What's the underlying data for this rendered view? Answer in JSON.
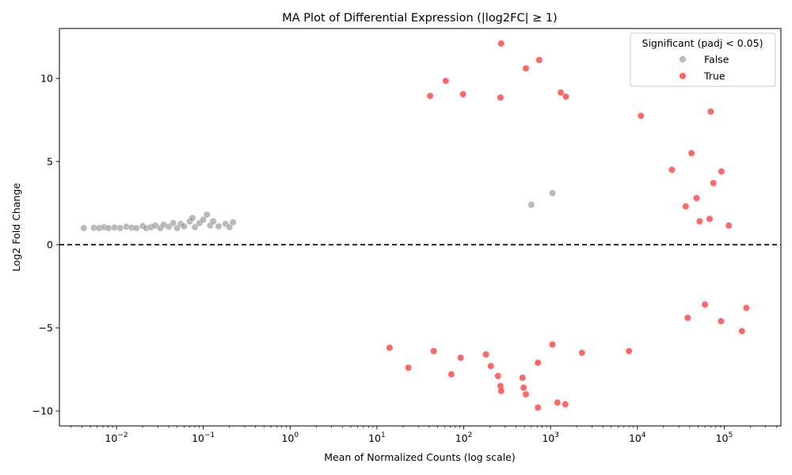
{
  "chart_data": {
    "type": "scatter",
    "title": "MA Plot of Differential Expression (|log2FC| ≥ 1)",
    "xlabel": "Mean of Normalized Counts (log scale)",
    "ylabel": "Log2 Fold Change",
    "x_scale": "log",
    "xlim": [
      0.0022,
      450000
    ],
    "ylim": [
      -10.9,
      13.0
    ],
    "x_ticks": [
      {
        "value": 0.01,
        "label": "10",
        "exp": "−2"
      },
      {
        "value": 0.1,
        "label": "10",
        "exp": "−1"
      },
      {
        "value": 1,
        "label": "10",
        "exp": "0"
      },
      {
        "value": 10,
        "label": "10",
        "exp": "1"
      },
      {
        "value": 100,
        "label": "10",
        "exp": "2"
      },
      {
        "value": 1000,
        "label": "10",
        "exp": "3"
      },
      {
        "value": 10000,
        "label": "10",
        "exp": "4"
      },
      {
        "value": 100000,
        "label": "10",
        "exp": "5"
      }
    ],
    "y_ticks": [
      {
        "value": -10,
        "label": "−10"
      },
      {
        "value": -5,
        "label": "−5"
      },
      {
        "value": 0,
        "label": "0"
      },
      {
        "value": 5,
        "label": "5"
      },
      {
        "value": 10,
        "label": "10"
      }
    ],
    "reference_line": {
      "y": 0,
      "style": "dashed",
      "color": "#000000"
    },
    "legend": {
      "title": "Significant (padj < 0.05)",
      "placement": "top-right",
      "entries": [
        {
          "label": "False",
          "color": "#8c8c8c"
        },
        {
          "label": "True",
          "color": "#ff0000"
        }
      ]
    },
    "series": [
      {
        "name": "False",
        "color": "#8c8c8c",
        "points": [
          [
            0.0042,
            1.0
          ],
          [
            0.0055,
            1.02
          ],
          [
            0.0063,
            1.0
          ],
          [
            0.0072,
            1.05
          ],
          [
            0.0081,
            1.0
          ],
          [
            0.0095,
            1.03
          ],
          [
            0.011,
            1.0
          ],
          [
            0.013,
            1.08
          ],
          [
            0.015,
            1.02
          ],
          [
            0.017,
            1.0
          ],
          [
            0.02,
            1.12
          ],
          [
            0.022,
            1.0
          ],
          [
            0.025,
            1.05
          ],
          [
            0.028,
            1.15
          ],
          [
            0.032,
            1.0
          ],
          [
            0.035,
            1.2
          ],
          [
            0.04,
            1.08
          ],
          [
            0.045,
            1.3
          ],
          [
            0.05,
            1.0
          ],
          [
            0.055,
            1.25
          ],
          [
            0.06,
            1.1
          ],
          [
            0.07,
            1.4
          ],
          [
            0.075,
            1.6
          ],
          [
            0.08,
            1.05
          ],
          [
            0.09,
            1.3
          ],
          [
            0.1,
            1.5
          ],
          [
            0.11,
            1.8
          ],
          [
            0.12,
            1.15
          ],
          [
            0.13,
            1.4
          ],
          [
            0.15,
            1.1
          ],
          [
            0.18,
            1.25
          ],
          [
            0.2,
            1.05
          ],
          [
            0.22,
            1.35
          ],
          [
            1050,
            3.1
          ],
          [
            600,
            2.4
          ]
        ]
      },
      {
        "name": "True",
        "color": "#ff0000",
        "points": [
          [
            270,
            12.1
          ],
          [
            740,
            11.1
          ],
          [
            520,
            10.6
          ],
          [
            62,
            9.85
          ],
          [
            1310,
            9.15
          ],
          [
            98,
            9.05
          ],
          [
            265,
            8.85
          ],
          [
            1500,
            8.9
          ],
          [
            41,
            8.95
          ],
          [
            70000,
            8.0
          ],
          [
            11000,
            7.75
          ],
          [
            93000,
            4.4
          ],
          [
            113000,
            1.15
          ],
          [
            52000,
            1.4
          ],
          [
            68000,
            1.55
          ],
          [
            75000,
            3.7
          ],
          [
            42000,
            5.5
          ],
          [
            25000,
            4.5
          ],
          [
            36000,
            2.3
          ],
          [
            48000,
            2.8
          ],
          [
            180000,
            -3.8
          ],
          [
            160000,
            -5.2
          ],
          [
            92000,
            -4.6
          ],
          [
            60000,
            -3.6
          ],
          [
            38000,
            -4.4
          ],
          [
            23,
            -7.4
          ],
          [
            205,
            -7.3
          ],
          [
            72,
            -7.8
          ],
          [
            92,
            -6.8
          ],
          [
            248,
            -7.9
          ],
          [
            265,
            -8.5
          ],
          [
            270,
            -8.8
          ],
          [
            475,
            -8.0
          ],
          [
            490,
            -8.6
          ],
          [
            520,
            -9.0
          ],
          [
            715,
            -9.8
          ],
          [
            1200,
            -9.5
          ],
          [
            1480,
            -9.6
          ],
          [
            715,
            -7.1
          ],
          [
            1050,
            -6.0
          ],
          [
            14,
            -6.2
          ],
          [
            45,
            -6.4
          ],
          [
            180,
            -6.6
          ],
          [
            2300,
            -6.5
          ],
          [
            8000,
            -6.4
          ]
        ]
      }
    ]
  }
}
